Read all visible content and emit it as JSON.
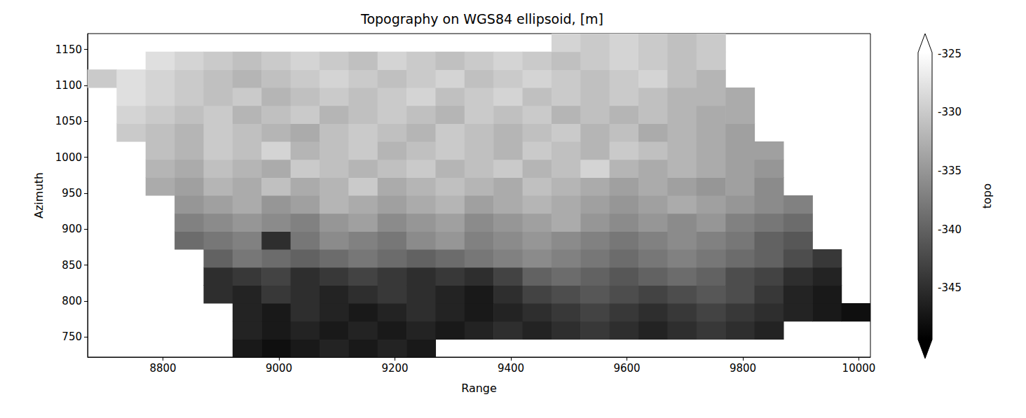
{
  "chart_data": {
    "type": "heatmap",
    "title": "Topography on WGS84 ellipsoid, [m]",
    "xlabel": "Range",
    "ylabel": "Azimuth",
    "xlim": [
      8670,
      10020
    ],
    "ylim": [
      722,
      1172
    ],
    "xticks": [
      8800,
      9000,
      9200,
      9400,
      9600,
      9800,
      10000
    ],
    "yticks": [
      750,
      800,
      850,
      900,
      950,
      1000,
      1050,
      1100,
      1150
    ],
    "x": [
      8695,
      8745,
      8795,
      8845,
      8895,
      8945,
      8995,
      9045,
      9095,
      9145,
      9195,
      9245,
      9295,
      9345,
      9395,
      9445,
      9495,
      9545,
      9595,
      9645,
      9695,
      9745,
      9795,
      9845,
      9895,
      9945,
      9995
    ],
    "y": [
      734.5,
      759.5,
      784.5,
      809.5,
      834.5,
      859.5,
      884.5,
      909.5,
      934.5,
      959.5,
      984.5,
      1009.5,
      1034.5,
      1059.5,
      1084.5,
      1109.5,
      1134.5,
      1159.5
    ],
    "values": [
      [
        null,
        null,
        null,
        null,
        null,
        -347,
        -348,
        -347,
        -346,
        -347,
        -346,
        -347,
        null,
        null,
        null,
        null,
        null,
        null,
        null,
        null,
        null,
        null,
        null,
        null,
        null,
        null,
        null
      ],
      [
        null,
        null,
        null,
        null,
        null,
        -346,
        -347,
        -346,
        -347,
        -346,
        -347,
        -346,
        -347,
        -346,
        -345,
        -346,
        -345,
        -344,
        -345,
        -346,
        -345,
        -344,
        -345,
        -346,
        null,
        null,
        null
      ],
      [
        null,
        null,
        null,
        null,
        null,
        -346,
        -347,
        -345,
        -346,
        -347,
        -346,
        -345,
        -346,
        -347,
        -346,
        -345,
        -344,
        -343,
        -344,
        -345,
        -344,
        -343,
        -344,
        -345,
        -346,
        -347,
        -348
      ],
      [
        null,
        null,
        null,
        null,
        -345,
        -346,
        -344,
        -345,
        -346,
        -345,
        -344,
        -345,
        -346,
        -347,
        -345,
        -343,
        -342,
        -341,
        -342,
        -343,
        -342,
        -341,
        -342,
        -344,
        -346,
        -347,
        null
      ],
      [
        null,
        null,
        null,
        null,
        -345,
        -344,
        -343,
        -345,
        -344,
        -343,
        -344,
        -345,
        -344,
        -345,
        -343,
        -340,
        -339,
        -340,
        -341,
        -340,
        -339,
        -340,
        -342,
        -343,
        -345,
        -346,
        null
      ],
      [
        null,
        null,
        null,
        null,
        -340,
        -338,
        -339,
        -340,
        -339,
        -338,
        -339,
        -340,
        -339,
        -338,
        -337,
        -336,
        -337,
        -338,
        -339,
        -338,
        -337,
        -338,
        -339,
        -340,
        -342,
        -344,
        null
      ],
      [
        null,
        null,
        null,
        -339,
        -338,
        -337,
        -345,
        -338,
        -336,
        -337,
        -338,
        -336,
        -335,
        -337,
        -336,
        -335,
        -336,
        -337,
        -338,
        -337,
        -336,
        -337,
        -338,
        -340,
        -341,
        null,
        null
      ],
      [
        null,
        null,
        null,
        -337,
        -336,
        -335,
        -336,
        -337,
        -335,
        -334,
        -336,
        -335,
        -334,
        -336,
        -335,
        -334,
        -333,
        -335,
        -336,
        -335,
        -336,
        -335,
        -337,
        -338,
        -339,
        null,
        null
      ],
      [
        null,
        null,
        null,
        -335,
        -334,
        -333,
        -335,
        -334,
        -332,
        -333,
        -334,
        -333,
        -332,
        -334,
        -333,
        -332,
        -333,
        -334,
        -335,
        -334,
        -333,
        -334,
        -335,
        -336,
        -337,
        null,
        null
      ],
      [
        null,
        null,
        -333,
        -334,
        -332,
        -333,
        -331,
        -333,
        -332,
        -330,
        -333,
        -332,
        -331,
        -332,
        -333,
        -331,
        -332,
        -333,
        -334,
        -333,
        -334,
        -335,
        -334,
        -336,
        null,
        null,
        null
      ],
      [
        null,
        null,
        -332,
        -333,
        -331,
        -332,
        -333,
        -330,
        -331,
        -332,
        -331,
        -330,
        -332,
        -331,
        -330,
        -332,
        -331,
        -329,
        -332,
        -333,
        -332,
        -333,
        -334,
        -335,
        null,
        null,
        null
      ],
      [
        null,
        null,
        -331,
        -332,
        -330,
        -331,
        -329,
        -332,
        -331,
        -330,
        -332,
        -331,
        -330,
        -331,
        -332,
        -330,
        -331,
        -332,
        -330,
        -331,
        -332,
        -333,
        -334,
        -334,
        null,
        null,
        null
      ],
      [
        null,
        -330,
        -331,
        -332,
        -330,
        -331,
        -332,
        -333,
        -331,
        -330,
        -331,
        -332,
        -330,
        -331,
        -332,
        -331,
        -330,
        -332,
        -331,
        -333,
        -332,
        -333,
        -334,
        null,
        null,
        null,
        null
      ],
      [
        null,
        -329,
        -330,
        -331,
        -330,
        -332,
        -331,
        -330,
        -332,
        -331,
        -330,
        -331,
        -332,
        -330,
        -331,
        -330,
        -332,
        -331,
        -332,
        -331,
        -332,
        -333,
        -333,
        null,
        null,
        null,
        null
      ],
      [
        null,
        -328,
        -329,
        -330,
        -331,
        -330,
        -332,
        -331,
        -330,
        -331,
        -330,
        -329,
        -331,
        -330,
        -329,
        -331,
        -330,
        -331,
        -330,
        -331,
        -332,
        -332,
        -333,
        null,
        null,
        null,
        null
      ],
      [
        -330,
        -328,
        -329,
        -330,
        -331,
        -332,
        -331,
        -330,
        -329,
        -330,
        -331,
        -330,
        -329,
        -331,
        -330,
        -329,
        -330,
        -331,
        -330,
        -329,
        -331,
        -332,
        null,
        null,
        null,
        null,
        null
      ],
      [
        null,
        null,
        -328,
        -329,
        -330,
        -331,
        -330,
        -329,
        -330,
        -331,
        -329,
        -330,
        -331,
        -330,
        -329,
        -330,
        -331,
        -330,
        -329,
        -330,
        -331,
        -330,
        null,
        null,
        null,
        null,
        null
      ],
      [
        null,
        null,
        null,
        null,
        null,
        null,
        null,
        null,
        null,
        null,
        null,
        null,
        null,
        null,
        null,
        null,
        -329,
        -330,
        -329,
        -330,
        -331,
        -330,
        null,
        null,
        null,
        null,
        null
      ]
    ],
    "colorbar": {
      "label": "topo",
      "range": [
        -349.4,
        -324.9
      ],
      "ticks": [
        -345,
        -340,
        -335,
        -330,
        -325
      ]
    }
  }
}
